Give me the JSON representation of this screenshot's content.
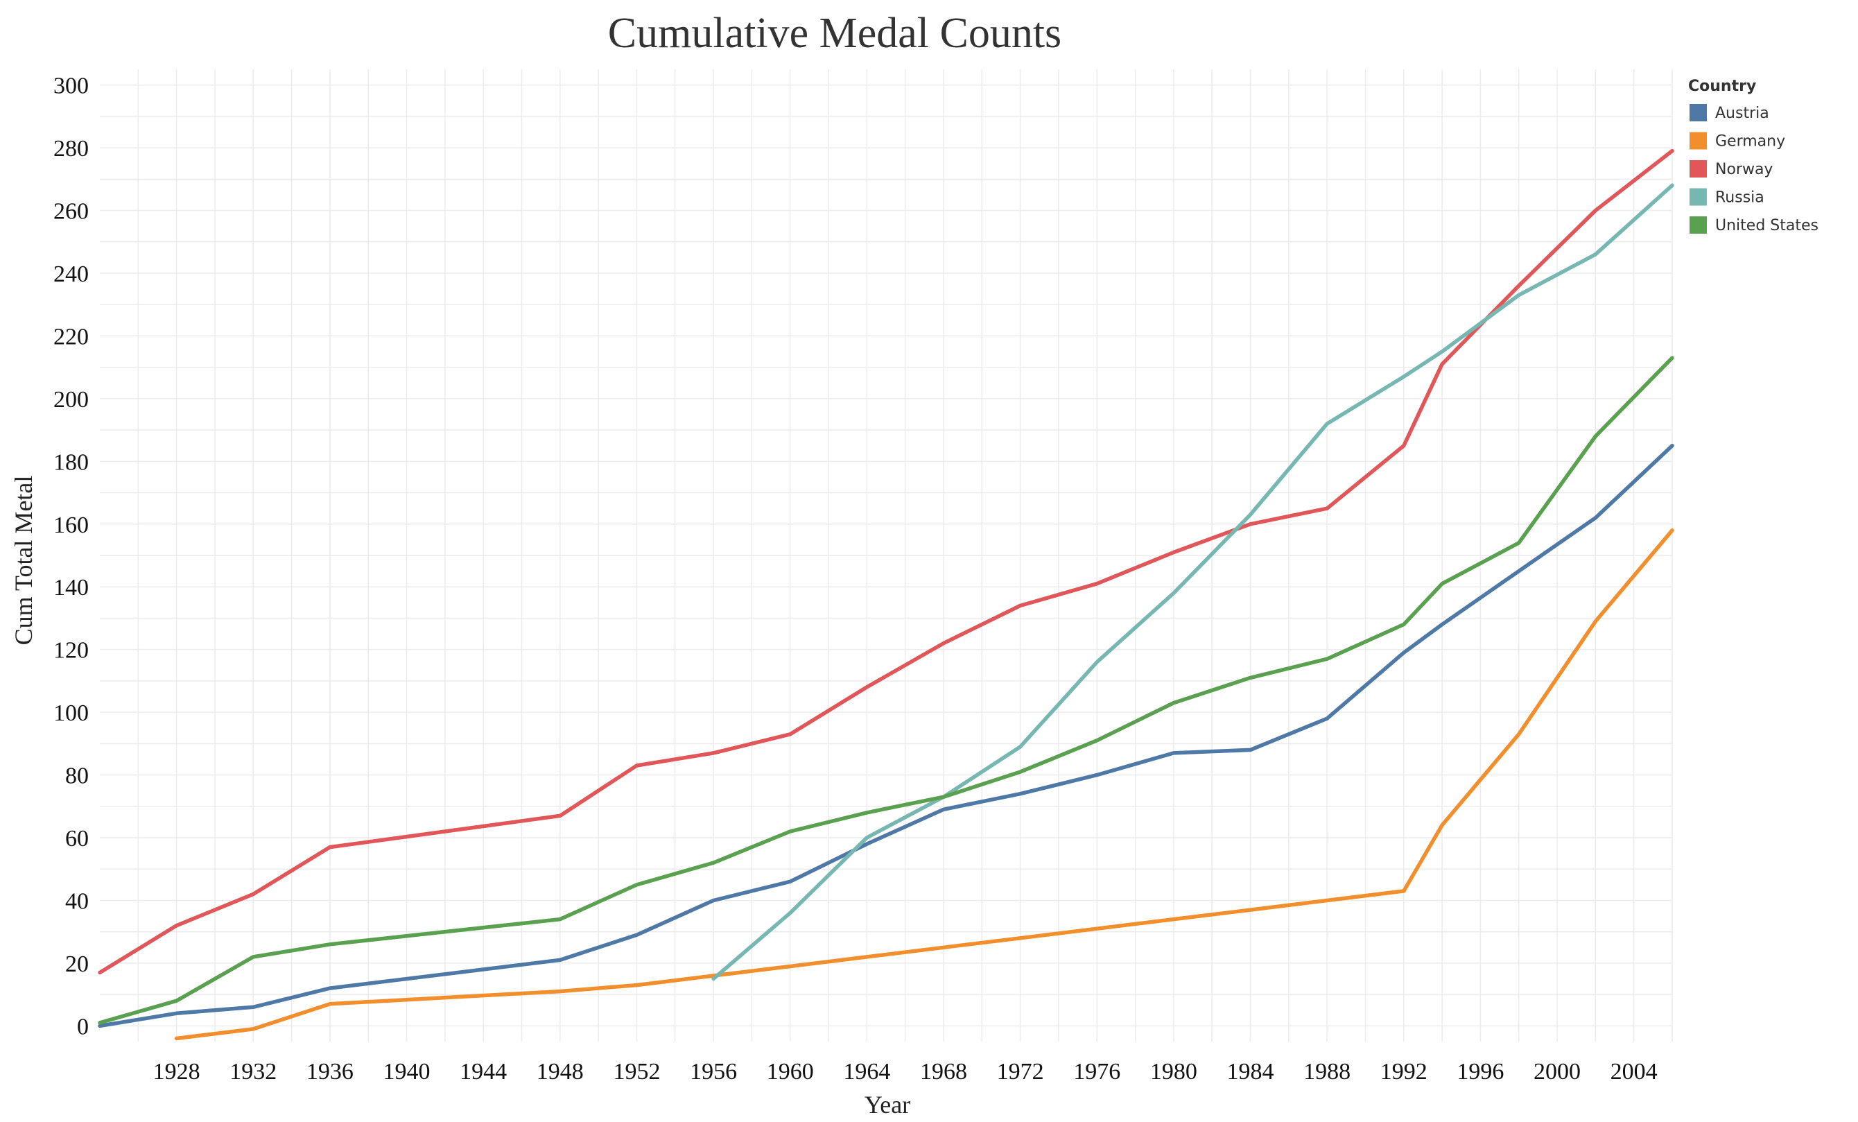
{
  "chart_data": {
    "type": "line",
    "title": "Cumulative Medal Counts",
    "xlabel": "Year",
    "ylabel": "Cum Total Metal",
    "xlim": [
      1924,
      2006
    ],
    "ylim": [
      -5,
      305
    ],
    "x_ticks": [
      1928,
      1932,
      1936,
      1940,
      1944,
      1948,
      1952,
      1956,
      1960,
      1964,
      1968,
      1972,
      1976,
      1980,
      1984,
      1988,
      1992,
      1996,
      2000,
      2004
    ],
    "y_ticks": [
      0,
      20,
      40,
      60,
      80,
      100,
      120,
      140,
      160,
      180,
      200,
      220,
      240,
      260,
      280,
      300
    ],
    "grid": true,
    "legend": {
      "title": "Country",
      "position": "top-right"
    },
    "series": [
      {
        "name": "Austria",
        "color": "#4e79a7",
        "x": [
          1924,
          1928,
          1932,
          1936,
          1948,
          1952,
          1956,
          1960,
          1964,
          1968,
          1972,
          1976,
          1980,
          1984,
          1988,
          1992,
          1994,
          1998,
          2002,
          2006
        ],
        "y": [
          0,
          4,
          6,
          12,
          21,
          29,
          40,
          46,
          58,
          69,
          74,
          80,
          87,
          88,
          98,
          119,
          128,
          145,
          162,
          185
        ]
      },
      {
        "name": "Germany",
        "color": "#f28e2b",
        "x": [
          1928,
          1932,
          1936,
          1948,
          1952,
          1956,
          1960,
          1964,
          1968,
          1972,
          1976,
          1980,
          1984,
          1988,
          1992,
          1994,
          1998,
          2002,
          2006
        ],
        "y": [
          -4,
          -1,
          7,
          11,
          13,
          16,
          19,
          22,
          25,
          28,
          31,
          34,
          37,
          40,
          43,
          64,
          93,
          129,
          158
        ]
      },
      {
        "name": "Norway",
        "color": "#e15759",
        "x": [
          1924,
          1928,
          1932,
          1936,
          1948,
          1952,
          1956,
          1960,
          1964,
          1968,
          1972,
          1976,
          1980,
          1984,
          1988,
          1992,
          1994,
          1998,
          2002,
          2006
        ],
        "y": [
          17,
          32,
          42,
          57,
          67,
          83,
          87,
          93,
          108,
          122,
          134,
          141,
          151,
          160,
          165,
          185,
          211,
          236,
          260,
          279
        ]
      },
      {
        "name": "Russia",
        "color": "#76b7b2",
        "x": [
          1956,
          1960,
          1964,
          1968,
          1972,
          1976,
          1980,
          1984,
          1988,
          1992,
          1994,
          1998,
          2002,
          2006
        ],
        "y": [
          15,
          36,
          60,
          73,
          89,
          116,
          138,
          163,
          192,
          207,
          215,
          233,
          246,
          268
        ]
      },
      {
        "name": "United States",
        "color": "#59a14f",
        "x": [
          1924,
          1928,
          1932,
          1936,
          1948,
          1952,
          1956,
          1960,
          1964,
          1968,
          1972,
          1976,
          1980,
          1984,
          1988,
          1992,
          1994,
          1998,
          2002,
          2006
        ],
        "y": [
          1,
          8,
          22,
          26,
          34,
          45,
          52,
          62,
          68,
          73,
          81,
          91,
          103,
          111,
          117,
          128,
          141,
          154,
          188,
          213
        ]
      }
    ]
  }
}
